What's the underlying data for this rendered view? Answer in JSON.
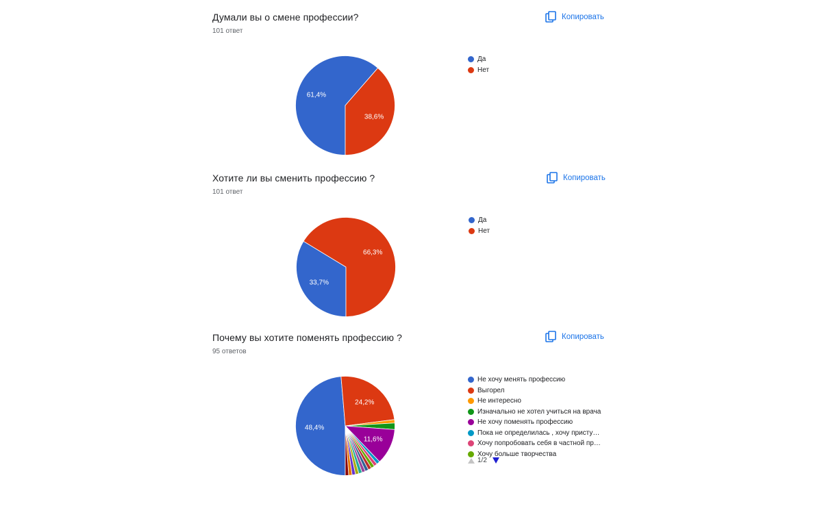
{
  "copy_label": "Копировать",
  "questions": [
    {
      "title": "Думали вы о смене профессии?",
      "count": "101 ответ"
    },
    {
      "title": "Хотите ли вы сменить профессию ?",
      "count": "101 ответ"
    },
    {
      "title": "Почему вы хотите поменять профессию ?",
      "count": "95 ответов",
      "pager": "1/2"
    }
  ],
  "chart_data": [
    {
      "type": "pie",
      "categories": [
        "Да",
        "Нет"
      ],
      "values": [
        61.4,
        38.6
      ],
      "labels": [
        "61,4%",
        "38,6%"
      ],
      "colors": [
        "#3366cc",
        "#dc3912"
      ],
      "legend": "right"
    },
    {
      "type": "pie",
      "categories": [
        "Да",
        "Нет"
      ],
      "values": [
        33.7,
        66.3
      ],
      "labels": [
        "33,7%",
        "66,3%"
      ],
      "colors": [
        "#3366cc",
        "#dc3912"
      ],
      "legend": "right"
    },
    {
      "type": "pie",
      "categories": [
        "Не хочу менять профессию",
        "Выгорел",
        "Не интересно",
        "Изначально не хотел учиться на врача",
        "Не хочу поменять профессию",
        "Пока не определилась , хочу присту…",
        "Хочу попробовать себя в частной пр…",
        "Хочу больше творчества"
      ],
      "values": [
        48.4,
        24.2,
        1.1,
        2.1,
        11.6,
        1.1,
        1.1,
        1.1
      ],
      "labels": [
        "48,4%",
        "24,2%",
        "",
        "",
        "11,6%",
        "",
        "",
        ""
      ],
      "other_slices": [
        1.1,
        1.1,
        1.1,
        1.1,
        1.1,
        1.1,
        1.1,
        1.1
      ],
      "colors": [
        "#3366cc",
        "#dc3912",
        "#ff9900",
        "#109618",
        "#990099",
        "#0099c6",
        "#dd4477",
        "#66aa00"
      ],
      "other_colors": [
        "#b82e2e",
        "#316395",
        "#994499",
        "#22aa99",
        "#aaaa11",
        "#6633cc",
        "#e67300",
        "#8b0707"
      ],
      "legend": "right"
    }
  ]
}
